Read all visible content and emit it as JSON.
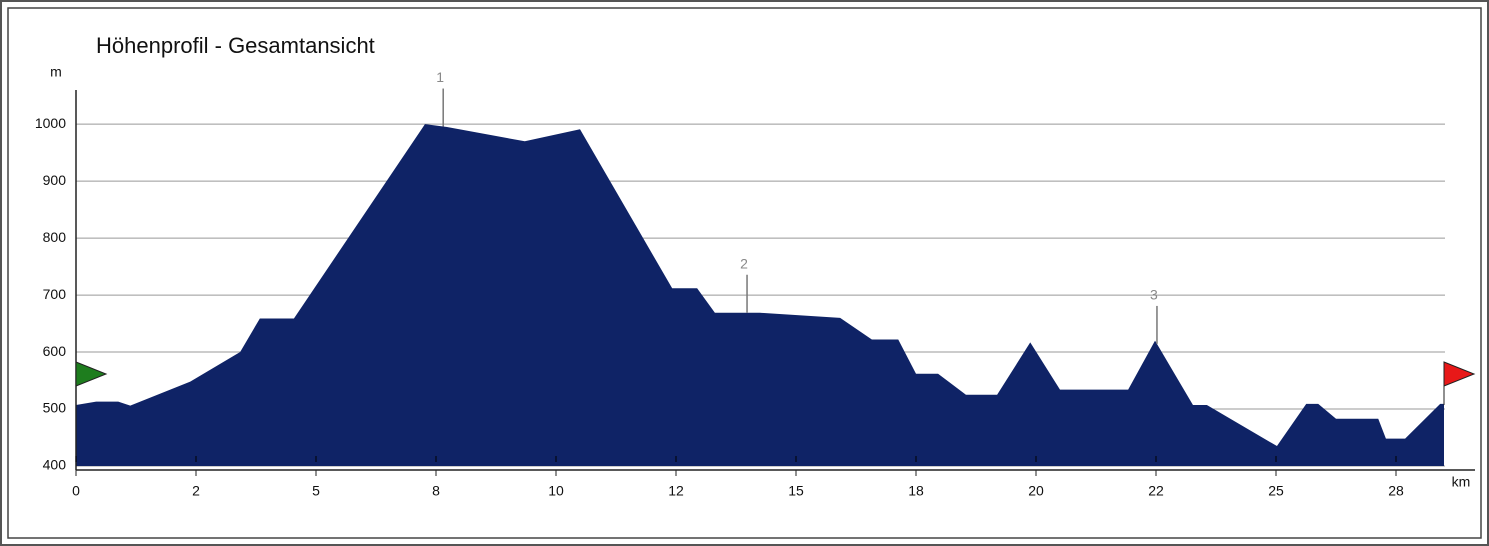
{
  "chart_data": {
    "type": "area",
    "title": "Höhenprofil - Gesamtansicht",
    "y_label": "m",
    "x_label": "km",
    "x": [
      0,
      0.42,
      0.88,
      1.13,
      2.38,
      3.42,
      3.83,
      4.54,
      7.27,
      7.73,
      9.35,
      10.5,
      12.42,
      12.94,
      13.31,
      14.25,
      15.92,
      16.58,
      17.13,
      17.5,
      17.96,
      18.54,
      19.19,
      19.88,
      20.5,
      21.92,
      22.48,
      23.27,
      23.56,
      25.02,
      25.63,
      25.88,
      26.25,
      27.13,
      27.29,
      27.69,
      28.42,
      28.5
    ],
    "values": [
      507,
      513,
      513,
      506,
      548,
      600,
      659,
      659,
      1000,
      995,
      970,
      991,
      712,
      712,
      669,
      669,
      660,
      622,
      622,
      562,
      562,
      525,
      525,
      617,
      534,
      534,
      620,
      507,
      507,
      435,
      509,
      509,
      483,
      483,
      448,
      448,
      509,
      509
    ],
    "color": "#0f2366",
    "xlim": [
      0,
      29.2
    ],
    "ylim": [
      400,
      1060
    ],
    "xticks": [
      0,
      {
        "value": 2.5,
        "label": "2"
      },
      5,
      {
        "value": 7.5,
        "label": "8"
      },
      10,
      {
        "value": 12.5,
        "label": "12"
      },
      15,
      {
        "value": 17.5,
        "label": "18"
      },
      20,
      {
        "value": 22.5,
        "label": "22"
      },
      25,
      {
        "value": 27.5,
        "label": "28"
      }
    ],
    "yticks": [
      400,
      500,
      600,
      700,
      800,
      900,
      1000
    ],
    "grid": true,
    "annotations": [
      {
        "label": "1",
        "x": 7.65
      },
      {
        "label": "2",
        "x": 13.98
      },
      {
        "label": "3",
        "x": 22.52
      }
    ]
  }
}
